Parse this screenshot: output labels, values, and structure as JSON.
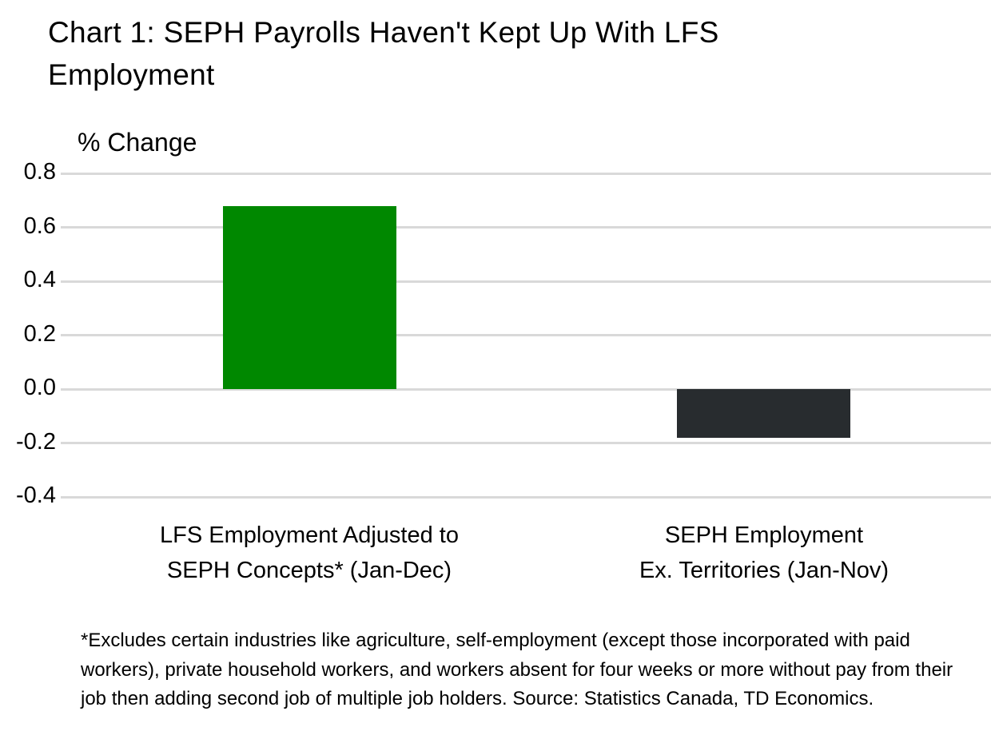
{
  "title": "Chart 1: SEPH Payrolls Haven't Kept Up With LFS Employment",
  "title_lines": [
    "Chart 1: SEPH Payrolls Haven't Kept Up With LFS",
    "Employment"
  ],
  "chart_data": {
    "type": "bar",
    "title": "Chart 1: SEPH Payrolls Haven't Kept Up With LFS Employment",
    "xlabel": "",
    "ylabel": "% Change",
    "ylim": [
      -0.4,
      0.8
    ],
    "yticks": [
      "0.8",
      "0.6",
      "0.4",
      "0.2",
      "0.0",
      "-0.2",
      "-0.4"
    ],
    "grid": true,
    "legend": "none",
    "categories": [
      "LFS Employment Adjusted to SEPH Concepts* (Jan-Dec)",
      "SEPH Employment Ex. Territories (Jan-Nov)"
    ],
    "values": [
      0.68,
      -0.18
    ],
    "colors": [
      "#008800",
      "#282c2f"
    ]
  },
  "axis": {
    "ylabel": "% Change",
    "ticks": [
      "0.8",
      "0.6",
      "0.4",
      "0.2",
      "0.0",
      "-0.2",
      "-0.4"
    ]
  },
  "categories": [
    {
      "line1": "LFS Employment Adjusted to",
      "line2": "SEPH Concepts* (Jan-Dec)"
    },
    {
      "line1": "SEPH Employment",
      "line2": "Ex. Territories (Jan-Nov)"
    }
  ],
  "footnote": "*Excludes certain industries like agriculture, self-employment (except those incorporated with paid workers), private household workers, and workers absent for four weeks or more without pay from their job then adding second job of multiple job holders. Source: Statistics Canada, TD Economics."
}
